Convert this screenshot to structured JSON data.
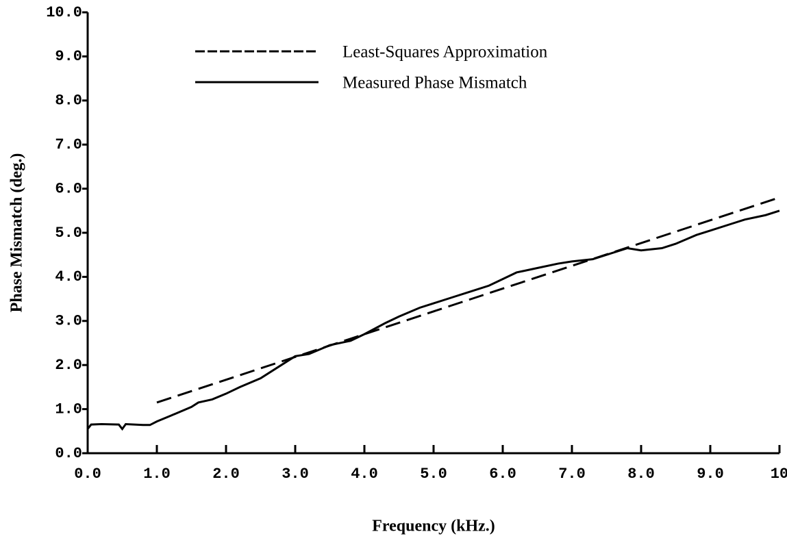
{
  "chart_data": {
    "type": "line",
    "xlabel": "Frequency (kHz.)",
    "ylabel": "Phase Mismatch (deg.)",
    "xlim": [
      0,
      10
    ],
    "ylim": [
      0,
      10
    ],
    "xticks": [
      {
        "value": 0,
        "label": "0.0"
      },
      {
        "value": 1,
        "label": "1.0"
      },
      {
        "value": 2,
        "label": "2.0"
      },
      {
        "value": 3,
        "label": "3.0"
      },
      {
        "value": 4,
        "label": "4.0"
      },
      {
        "value": 5,
        "label": "5.0"
      },
      {
        "value": 6,
        "label": "6.0"
      },
      {
        "value": 7,
        "label": "7.0"
      },
      {
        "value": 8,
        "label": "8.0"
      },
      {
        "value": 9,
        "label": "9.0"
      },
      10
    ],
    "yticks": [
      {
        "value": 0,
        "label": "0.0"
      },
      {
        "value": 1,
        "label": "1.0"
      },
      {
        "value": 2,
        "label": "2.0"
      },
      {
        "value": 3,
        "label": "3.0"
      },
      {
        "value": 4,
        "label": "4.0"
      },
      {
        "value": 5,
        "label": "5.0"
      },
      {
        "value": 6,
        "label": "6.0"
      },
      {
        "value": 7,
        "label": "7.0"
      },
      {
        "value": 8,
        "label": "8.0"
      },
      {
        "value": 9,
        "label": "9.0"
      },
      {
        "value": 10,
        "label": "10.0"
      }
    ],
    "legend": "upper left",
    "grid": false,
    "series": [
      {
        "name": "Least-Squares Approximation",
        "color": "#000000",
        "linestyle": "dashed",
        "x": [
          1,
          10
        ],
        "values": [
          1.15,
          5.8
        ]
      },
      {
        "name": "Measured Phase Mismatch",
        "color": "#000000",
        "linestyle": "solid",
        "x": [
          0,
          0.05,
          0.2,
          0.45,
          0.5,
          0.55,
          0.8,
          0.9,
          1.0,
          1.2,
          1.5,
          1.6,
          1.8,
          2.0,
          2.2,
          2.5,
          2.8,
          3.0,
          3.2,
          3.5,
          3.8,
          4.0,
          4.3,
          4.5,
          4.8,
          5.0,
          5.3,
          5.5,
          5.8,
          6.0,
          6.2,
          6.5,
          6.8,
          7.0,
          7.3,
          7.5,
          7.8,
          8.0,
          8.3,
          8.5,
          8.8,
          9.0,
          9.3,
          9.5,
          9.8,
          10.0
        ],
        "values": [
          0.55,
          0.65,
          0.66,
          0.65,
          0.55,
          0.66,
          0.64,
          0.64,
          0.72,
          0.85,
          1.05,
          1.15,
          1.22,
          1.35,
          1.5,
          1.7,
          2.0,
          2.2,
          2.25,
          2.45,
          2.55,
          2.7,
          2.95,
          3.1,
          3.3,
          3.4,
          3.55,
          3.65,
          3.8,
          3.95,
          4.1,
          4.2,
          4.3,
          4.35,
          4.4,
          4.5,
          4.65,
          4.6,
          4.65,
          4.75,
          4.95,
          5.05,
          5.2,
          5.3,
          5.4,
          5.5
        ]
      }
    ]
  }
}
